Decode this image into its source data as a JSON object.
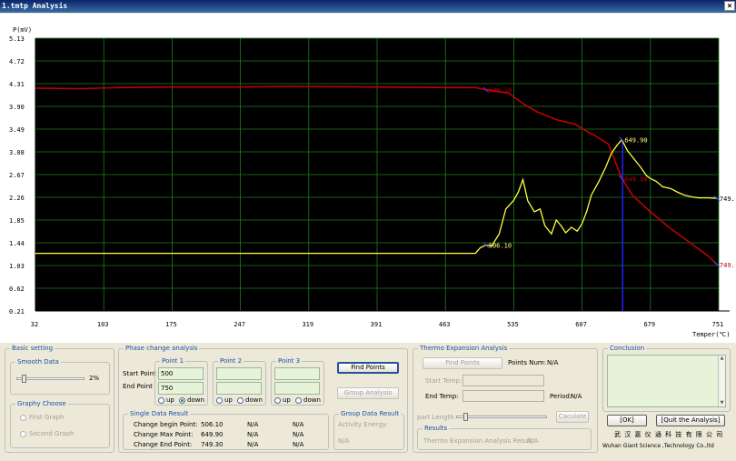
{
  "window": {
    "title": "1.tmtp  Analysis",
    "close_glyph": "×"
  },
  "chart_data": {
    "type": "line",
    "ylabel": "P(mV)",
    "xlabel": "Temper(℃)",
    "xlim": [
      32,
      751
    ],
    "ylim": [
      0.21,
      5.13
    ],
    "x_ticks": [
      "32",
      "103",
      "175",
      "247",
      "319",
      "391",
      "463",
      "535",
      "607",
      "679",
      "751"
    ],
    "y_ticks": [
      "5.13",
      "4.72",
      "4.31",
      "3.90",
      "3.49",
      "3.08",
      "2.67",
      "2.26",
      "1.85",
      "1.44",
      "1.03",
      "0.62",
      "0.21"
    ],
    "grid": true,
    "background": "#000000",
    "series": [
      {
        "color": "#c00000",
        "points": [
          [
            32,
            4.23
          ],
          [
            80,
            4.22
          ],
          [
            120,
            4.24
          ],
          [
            175,
            4.25
          ],
          [
            247,
            4.25
          ],
          [
            300,
            4.26
          ],
          [
            391,
            4.25
          ],
          [
            463,
            4.24
          ],
          [
            495,
            4.24
          ],
          [
            506,
            4.2
          ],
          [
            530,
            4.14
          ],
          [
            545,
            3.95
          ],
          [
            560,
            3.8
          ],
          [
            580,
            3.66
          ],
          [
            600,
            3.58
          ],
          [
            607,
            3.5
          ],
          [
            620,
            3.38
          ],
          [
            635,
            3.22
          ],
          [
            649,
            2.6
          ],
          [
            660,
            2.3
          ],
          [
            679,
            2.0
          ],
          [
            700,
            1.7
          ],
          [
            720,
            1.45
          ],
          [
            740,
            1.2
          ],
          [
            749,
            1.05
          ]
        ]
      },
      {
        "color": "#ffff40",
        "points": [
          [
            32,
            1.25
          ],
          [
            200,
            1.25
          ],
          [
            400,
            1.25
          ],
          [
            495,
            1.25
          ],
          [
            500,
            1.35
          ],
          [
            506,
            1.4
          ],
          [
            512,
            1.38
          ],
          [
            520,
            1.6
          ],
          [
            527,
            2.05
          ],
          [
            535,
            2.2
          ],
          [
            540,
            2.35
          ],
          [
            545,
            2.58
          ],
          [
            550,
            2.2
          ],
          [
            557,
            2.0
          ],
          [
            563,
            2.05
          ],
          [
            568,
            1.75
          ],
          [
            575,
            1.6
          ],
          [
            580,
            1.85
          ],
          [
            585,
            1.75
          ],
          [
            590,
            1.62
          ],
          [
            596,
            1.72
          ],
          [
            602,
            1.65
          ],
          [
            607,
            1.78
          ],
          [
            612,
            2.0
          ],
          [
            617,
            2.3
          ],
          [
            625,
            2.55
          ],
          [
            632,
            2.8
          ],
          [
            638,
            3.05
          ],
          [
            644,
            3.2
          ],
          [
            649,
            3.3
          ],
          [
            655,
            3.1
          ],
          [
            662,
            2.95
          ],
          [
            669,
            2.8
          ],
          [
            675,
            2.65
          ],
          [
            679,
            2.6
          ],
          [
            685,
            2.55
          ],
          [
            692,
            2.45
          ],
          [
            700,
            2.42
          ],
          [
            708,
            2.35
          ],
          [
            715,
            2.3
          ],
          [
            722,
            2.27
          ],
          [
            730,
            2.25
          ],
          [
            740,
            2.25
          ],
          [
            749,
            2.24
          ]
        ]
      }
    ],
    "annotations": [
      {
        "x": 506,
        "y": 4.2,
        "text": "506.10",
        "color": "#c00000"
      },
      {
        "x": 506,
        "y": 1.4,
        "text": "506.10",
        "color": "#ffff80"
      },
      {
        "x": 649,
        "y": 3.3,
        "text": "649.90",
        "color": "#ffff80"
      },
      {
        "x": 649,
        "y": 2.6,
        "text": "649.90",
        "color": "#c00000"
      },
      {
        "x": 749,
        "y": 2.24,
        "text": "749.",
        "color": "#000000"
      },
      {
        "x": 749,
        "y": 1.05,
        "text": "749.",
        "color": "#c00000"
      }
    ],
    "vline_x": 649.9
  },
  "basic_setting": {
    "legend": "Basic setting",
    "smooth": {
      "legend": "Smooth Data",
      "value_label": "2%",
      "value": 0.02
    },
    "graphy": {
      "legend": "Graphy Choose",
      "first": "First Graph",
      "second": "Second Graph"
    }
  },
  "phase": {
    "legend": "Phase change analysis",
    "start_label": "Start Point",
    "end_label": "End Point",
    "points": [
      {
        "legend": "Point 1",
        "start": "500",
        "end": "750",
        "selected": "down"
      },
      {
        "legend": "Point 2",
        "start": "",
        "end": "",
        "selected": ""
      },
      {
        "legend": "Point 3",
        "start": "",
        "end": "",
        "selected": ""
      }
    ],
    "up": "up",
    "down": "down",
    "find_points": "Find Points",
    "group_analysis": "Group Analysis",
    "single": {
      "legend": "Single Data Result",
      "rows": [
        {
          "label": "Change begin Point:",
          "v1": "506.10",
          "v2": "N/A",
          "v3": "N/A"
        },
        {
          "label": "Change Max Point:",
          "v1": "649.90",
          "v2": "N/A",
          "v3": "N/A"
        },
        {
          "label": "Change End Point:",
          "v1": "749.30",
          "v2": "N/A",
          "v3": "N/A"
        }
      ]
    },
    "group": {
      "legend": "Group Data Result",
      "activity": "Activity Energy:",
      "value": "N/A"
    }
  },
  "thermo": {
    "legend": "Thermo Expansion Analysis",
    "find_points": "Find Points",
    "points_num_label": "Points Num:",
    "points_num": "N/A",
    "start_temp": "Start Temp:",
    "end_temp": "End Temp:",
    "period_label": "Period:",
    "period": "N/A",
    "part_length": "part Length",
    "caculate": "Caculate",
    "results_legend": "Results",
    "result_label": "Thermo Expansion Analysis Result:",
    "result_value": "N/A"
  },
  "conclusion": {
    "legend": "Conclusion"
  },
  "buttons": {
    "ok": "[OK]",
    "quit": "[Quit the Analysis]"
  },
  "company": {
    "cn": "武 汉 嘉 仪 通 科 技 有 限 公 司",
    "en": "Wuhan Giant Science ,Technology Co.,ltd"
  }
}
